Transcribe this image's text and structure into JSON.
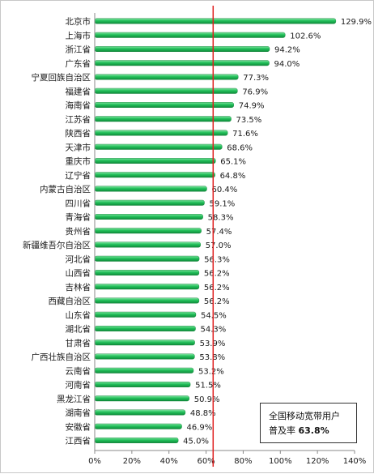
{
  "chart_data": {
    "type": "bar",
    "orientation": "horizontal",
    "categories": [
      "北京市",
      "上海市",
      "浙江省",
      "广东省",
      "宁夏回族自治区",
      "福建省",
      "海南省",
      "江苏省",
      "陕西省",
      "天津市",
      "重庆市",
      "辽宁省",
      "内蒙古自治区",
      "四川省",
      "青海省",
      "贵州省",
      "新疆维吾尔自治区",
      "河北省",
      "山西省",
      "吉林省",
      "西藏自治区",
      "山东省",
      "湖北省",
      "甘肃省",
      "广西壮族自治区",
      "云南省",
      "河南省",
      "黑龙江省",
      "湖南省",
      "安徽省",
      "江西省"
    ],
    "values": [
      129.9,
      102.6,
      94.2,
      94.0,
      77.3,
      76.9,
      74.9,
      73.5,
      71.6,
      68.6,
      65.1,
      64.8,
      60.4,
      59.1,
      58.3,
      57.4,
      57.0,
      56.3,
      56.2,
      56.2,
      56.2,
      54.5,
      54.3,
      53.9,
      53.8,
      53.2,
      51.5,
      50.9,
      48.8,
      46.9,
      45.0
    ],
    "value_labels": [
      "129.9%",
      "102.6%",
      "94.2%",
      "94.0%",
      "77.3%",
      "76.9%",
      "74.9%",
      "73.5%",
      "71.6%",
      "68.6%",
      "65.1%",
      "64.8%",
      "60.4%",
      "59.1%",
      "58.3%",
      "57.4%",
      "57.0%",
      "56.3%",
      "56.2%",
      "56.2%",
      "56.2%",
      "54.5%",
      "54.3%",
      "53.9%",
      "53.8%",
      "53.2%",
      "51.5%",
      "50.9%",
      "48.8%",
      "46.9%",
      "45.0%"
    ],
    "xlim": [
      0,
      140
    ],
    "x_ticks": [
      0,
      20,
      40,
      60,
      80,
      100,
      120,
      140
    ],
    "x_tick_labels": [
      "0%",
      "20%",
      "40%",
      "60%",
      "80%",
      "100%",
      "120%",
      "140%"
    ],
    "reference_line": {
      "value": 63.8,
      "color": "#e02020"
    },
    "bar_color": "#22c05a",
    "grid": false,
    "annotation": {
      "line1": "全国移动宽带用户",
      "line2_prefix": "普及率",
      "line2_value": "63.8%"
    }
  }
}
